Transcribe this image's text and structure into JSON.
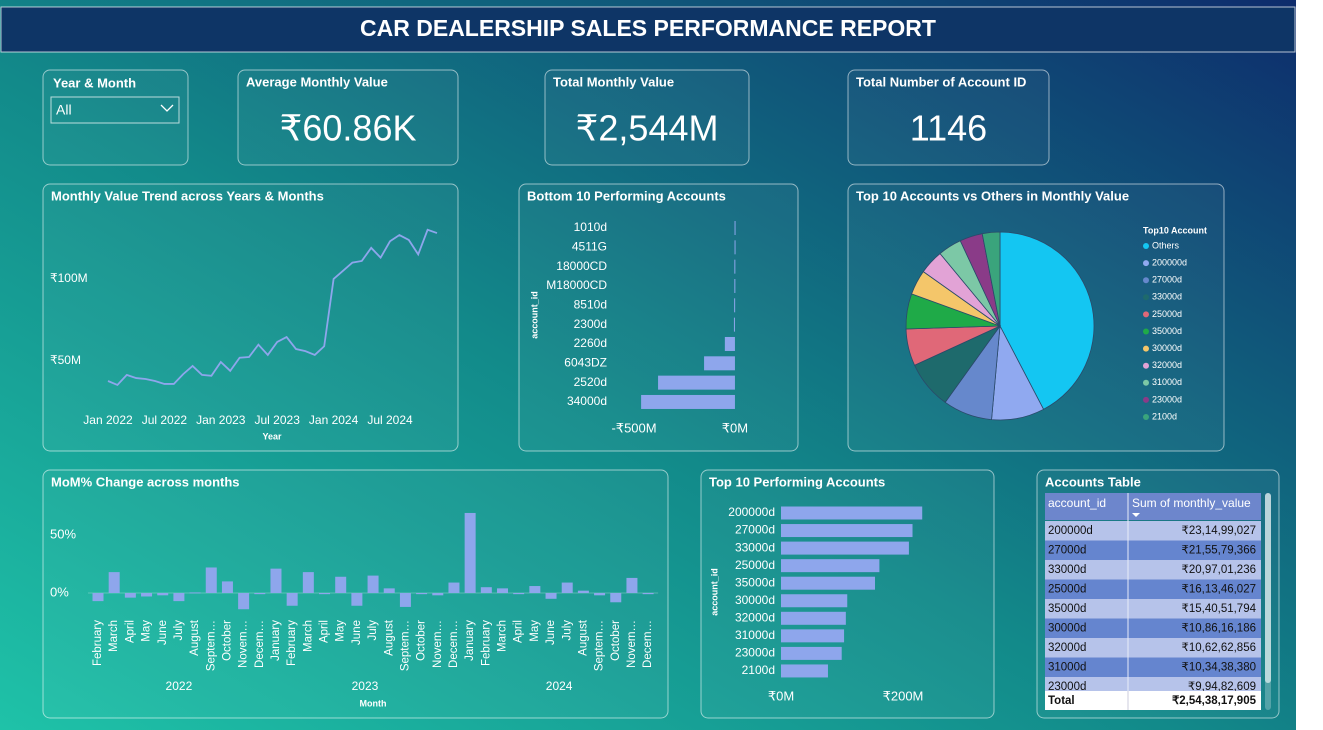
{
  "header": {
    "title": "CAR DEALERSHIP SALES PERFORMANCE REPORT"
  },
  "filter": {
    "label": "Year & Month",
    "value": "All"
  },
  "cards": [
    {
      "label": "Average Monthly Value",
      "value": "₹60.86K"
    },
    {
      "label": "Total Monthly Value",
      "value": "₹2,544M"
    },
    {
      "label": "Total Number of Account ID",
      "value": "1146"
    }
  ],
  "chart_data": [
    {
      "type": "line",
      "title": "Monthly Value Trend across Years & Months",
      "xlabel": "Year",
      "color": "#8ea6ec",
      "categories": [
        "Jan 2022",
        null,
        null,
        null,
        null,
        null,
        "Jul 2022",
        null,
        null,
        null,
        null,
        null,
        "Jan 2023",
        null,
        null,
        null,
        null,
        null,
        "Jul 2023",
        null,
        null,
        null,
        null,
        null,
        "Jan 2024",
        null,
        null,
        null,
        null,
        null,
        "Jul 2024",
        null,
        null,
        null,
        null,
        null
      ],
      "values": [
        37.8,
        35.4,
        41.5,
        39.6,
        39,
        37.8,
        36,
        36,
        42,
        47,
        41.5,
        41,
        49.4,
        44,
        52,
        52.4,
        60,
        53.7,
        61.6,
        64.6,
        57.3,
        56,
        53.7,
        59,
        100,
        105,
        110,
        111,
        119,
        113,
        123,
        126.8,
        123.8,
        115,
        130,
        128
      ],
      "ylim": [
        25,
        140
      ],
      "yticks": [
        {
          "value": 50,
          "label": "₹50M"
        },
        {
          "value": 100,
          "label": "₹100M"
        }
      ]
    },
    {
      "type": "bar",
      "horizontal": true,
      "title": "Bottom 10 Performing Accounts",
      "ylabel": "account_id",
      "color": "#8ea6ec",
      "categories": [
        "1010d",
        "4511G",
        "18000CD",
        "M18000CD",
        "8510d",
        "2300d",
        "2260d",
        "6043DZ",
        "2520d",
        "34000d"
      ],
      "values": [
        -2,
        -2,
        -3,
        -3,
        -4,
        -5,
        -50,
        -153,
        -381,
        -465
      ],
      "xlim": [
        -520,
        30
      ],
      "xticks": [
        {
          "value": -500,
          "label": "-₹500M"
        },
        {
          "value": 0,
          "label": "₹0M"
        }
      ]
    },
    {
      "type": "pie",
      "title": "Top 10 Accounts vs Others in Monthly Value",
      "legend_title": "Top10 Account",
      "categories": [
        "Others",
        "200000d",
        "27000d",
        "33000d",
        "25000d",
        "35000d",
        "30000d",
        "32000d",
        "31000d",
        "23000d",
        "2100d"
      ],
      "values": [
        1077,
        231.5,
        215.6,
        209.7,
        161.3,
        154.1,
        108.6,
        106.3,
        103.4,
        99.5,
        77
      ],
      "colors": [
        "#14c6f2",
        "#90a9f0",
        "#6688cc",
        "#1e6a6c",
        "#e06878",
        "#1faa48",
        "#f4c66a",
        "#e2a3d6",
        "#7cc8a6",
        "#8a3b88",
        "#3aa47c"
      ]
    },
    {
      "type": "bar",
      "title": "MoM% Change across months",
      "xlabel": "Month",
      "color": "#8ea6ec",
      "categories": [
        "February",
        "March",
        "April",
        "May",
        "June",
        "July",
        "August",
        "Septem…",
        "October",
        "Novem…",
        "Decem…",
        "January",
        "February",
        "March",
        "April",
        "May",
        "June",
        "July",
        "August",
        "Septem…",
        "October",
        "Novem…",
        "Decem…",
        "January",
        "February",
        "March",
        "April",
        "May",
        "June",
        "July",
        "August",
        "Septem…",
        "October",
        "Novem…",
        "Decem…"
      ],
      "year_groups": [
        "2022",
        "2023",
        "2024"
      ],
      "values": [
        -7,
        18,
        -4,
        -3,
        -2,
        -7,
        0.5,
        22,
        10,
        -14,
        -1,
        21,
        -11,
        18,
        -1,
        14,
        -11,
        15,
        4,
        -12,
        -1,
        -2,
        9,
        69,
        5,
        4,
        -1,
        6,
        -5,
        9,
        2,
        -2,
        -8,
        13,
        -1
      ],
      "ylim": [
        -20,
        75
      ],
      "yticks": [
        {
          "value": 0,
          "label": "0%"
        },
        {
          "value": 50,
          "label": "50%"
        }
      ]
    },
    {
      "type": "bar",
      "horizontal": true,
      "title": "Top 10 Performing Accounts",
      "ylabel": "account_id",
      "color": "#8ea6ec",
      "categories": [
        "200000d",
        "27000d",
        "33000d",
        "25000d",
        "35000d",
        "30000d",
        "32000d",
        "31000d",
        "23000d",
        "2100d"
      ],
      "values": [
        231.5,
        215.6,
        209.7,
        161.3,
        154.1,
        108.6,
        106.3,
        103.4,
        99.5,
        77
      ],
      "xlim": [
        0,
        240
      ],
      "xticks": [
        {
          "value": 0,
          "label": "₹0M"
        },
        {
          "value": 200,
          "label": "₹200M"
        }
      ]
    }
  ],
  "table": {
    "title": "Accounts Table",
    "columns": [
      "account_id",
      "Sum of monthly_value"
    ],
    "rows": [
      [
        "200000d",
        "₹23,14,99,027"
      ],
      [
        "27000d",
        "₹21,55,79,366"
      ],
      [
        "33000d",
        "₹20,97,01,236"
      ],
      [
        "25000d",
        "₹16,13,46,027"
      ],
      [
        "35000d",
        "₹15,40,51,794"
      ],
      [
        "30000d",
        "₹10,86,16,186"
      ],
      [
        "32000d",
        "₹10,62,62,856"
      ],
      [
        "31000d",
        "₹10,34,38,380"
      ],
      [
        "23000d",
        "₹9,94,82,609"
      ]
    ],
    "total": [
      "Total",
      "₹2,54,38,17,905"
    ]
  }
}
